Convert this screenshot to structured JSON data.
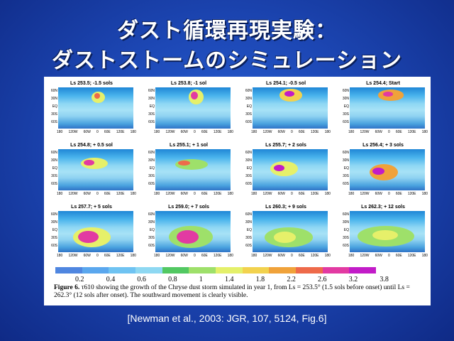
{
  "slide": {
    "title_line1": "ダスト循環再現実験：",
    "title_line2": "ダストストームのシミュレーション",
    "citation": "[Newman et al., 2003: JGR, 107, 5124, Fig.6]"
  },
  "figure": {
    "y_ticks": [
      "60N",
      "30N",
      "EQ",
      "30S",
      "60S"
    ],
    "x_ticks": [
      "180",
      "120W",
      "60W",
      "0",
      "60E",
      "120E",
      "180"
    ],
    "panels": [
      {
        "label": "Ls 253.5; -1.5 sols"
      },
      {
        "label": "Ls 253.8; -1 sol"
      },
      {
        "label": "Ls 254.1; -0.5 sol"
      },
      {
        "label": "Ls 254.4; Start"
      },
      {
        "label": "Ls 254.8; + 0.5 sol"
      },
      {
        "label": "Ls 255.1; + 1 sol"
      },
      {
        "label": "Ls 255.7; + 2 sols"
      },
      {
        "label": "Ls 256.4; + 3 sols"
      },
      {
        "label": "Ls 257.7; + 5 sols"
      },
      {
        "label": "Ls 259.0; + 7 sols"
      },
      {
        "label": "Ls 260.3; + 9 sols"
      },
      {
        "label": "Ls 262.3; + 12 sols"
      }
    ],
    "colorbar": {
      "labels": [
        "0.2",
        "0.4",
        "0.6",
        "0.8",
        "1",
        "1.4",
        "1.8",
        "2.2",
        "2.6",
        "3.2",
        "3.8"
      ],
      "colors": [
        "#4f86e0",
        "#5aa7ee",
        "#6fc3f2",
        "#8ed8f2",
        "#52c862",
        "#9ee06a",
        "#e4f06a",
        "#f2d24e",
        "#f0a23a",
        "#ee6a4a",
        "#e23aa2",
        "#c21cc8"
      ]
    },
    "caption_label": "Figure 6.",
    "caption_text": "τ610 showing the growth of the Chryse dust storm simulated in year 1, from Ls = 253.5° (1.5 sols before onset) until Ls = 262.3° (12 sols after onset). The southward movement is clearly visible."
  }
}
